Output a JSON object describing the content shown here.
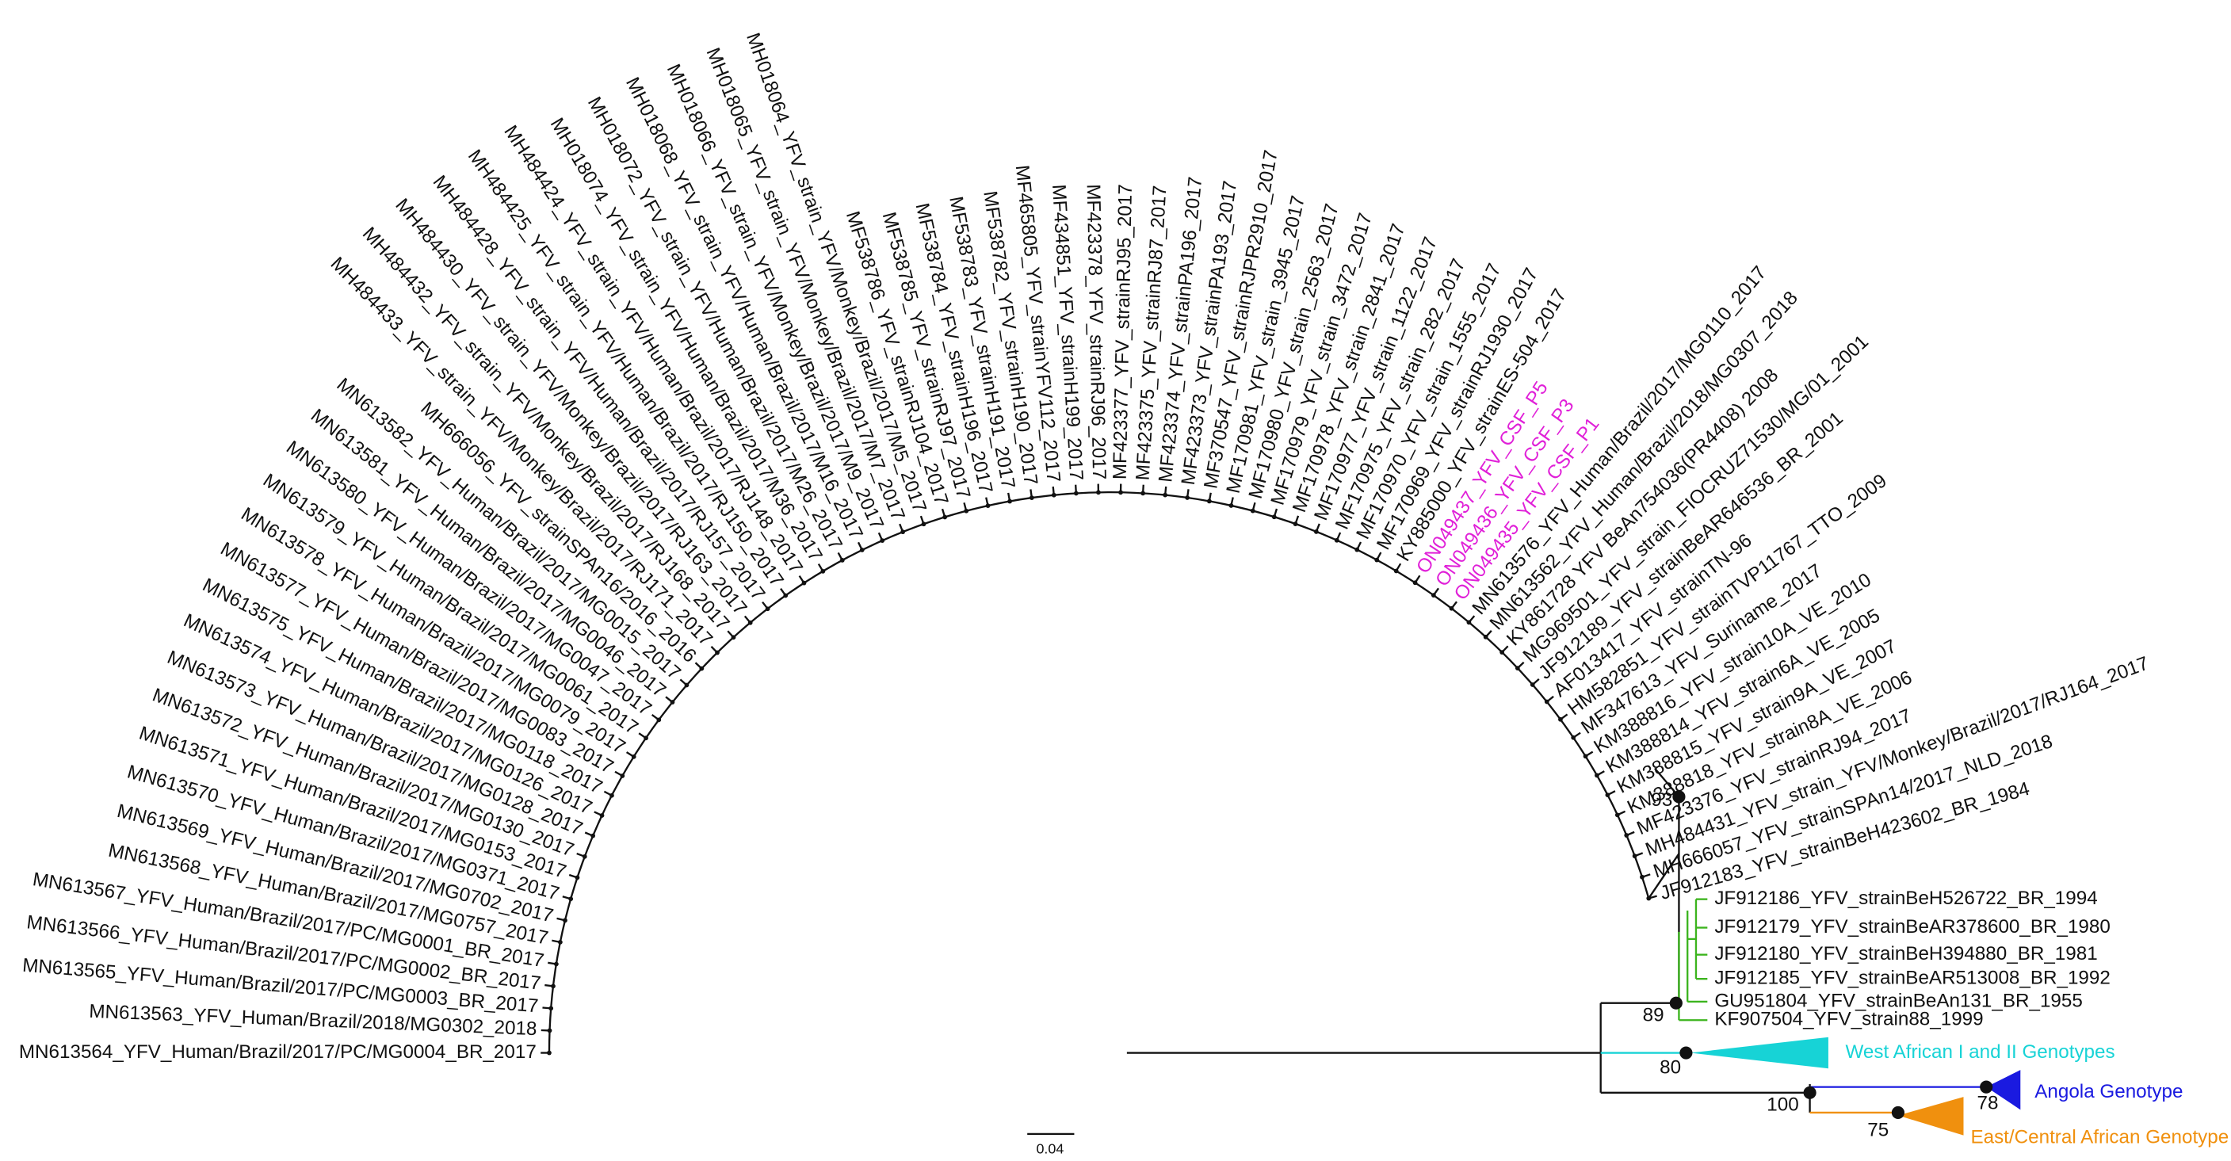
{
  "tree": {
    "leaves": [
      "MN613564_YFV_Human/Brazil/2017/PC/MG0004_BR_2017",
      "MN613563_YFV_Human/Brazil/2018/MG0302_2018",
      "MN613565_YFV_Human/Brazil/2017/PC/MG0003_BR_2017",
      "MN613566_YFV_Human/Brazil/2017/PC/MG0002_BR_2017",
      "MN613567_YFV_Human/Brazil/2017/PC/MG0001_BR_2017",
      "MN613568_YFV_Human/Brazil/2017/MG0757_2017",
      "MN613569_YFV_Human/Brazil/2017/MG0702_2017",
      "MN613570_YFV_Human/Brazil/2017/MG0371_2017",
      "MN613571_YFV_Human/Brazil/2017/MG0153_2017",
      "MN613572_YFV_Human/Brazil/2017/MG0130_2017",
      "MN613573_YFV_Human/Brazil/2017/MG0128_2017",
      "MN613574_YFV_Human/Brazil/2017/MG0126_2017",
      "MN613575_YFV_Human/Brazil/2017/MG0118_2017",
      "MN613577_YFV_Human/Brazil/2017/MG0083_2017",
      "MN613578_YFV_Human/Brazil/2017/MG0079_2017",
      "MN613579_YFV_Human/Brazil/2017/MG0061_2017",
      "MN613580_YFV_Human/Brazil/2017/MG0047_2017",
      "MN613581_YFV_Human/Brazil/2017/MG0046_2017",
      "MN613582_YFV_Human/Brazil/2017/MG0015_2017",
      "MH666056_YFV_strainSPAn16/2016_2016",
      "MH484433_YFV_strain_YFV/Monkey/Brazil/2017/RJ171_2017",
      "MH484432_YFV_strain_YFV/Monkey/Brazil/2017/RJ168_2017",
      "MH484430_YFV_strain_YFV/Monkey/Brazil/2017/RJ163_2017",
      "MH484428_YFV_strain_YFV/Human/Brazil/2017/RJ157_2017",
      "MH484425_YFV_strain_YFV/Human/Brazil/2017/RJ150_2017",
      "MH484424_YFV_strain_YFV/Human/Brazil/2017/RJ148_2017",
      "MH018074_YFV_strain_YFV/Human/Brazil/2017/M36_2017",
      "MH018072_YFV_strain_YFV/Human/Brazil/2017/M26_2017",
      "MH018068_YFV_strain_YFV/Human/Brazil/2017/M16_2017",
      "MH018066_YFV_strain_YFV/Monkey/Brazil/2017/M9_2017",
      "MH018065_YFV_strain_YFV/Monkey/Brazil/2017/M7_2017",
      "MH018064_YFV_strain_YFV/Monkey/Brazil/2017/M5_2017",
      "MF538786_YFV_strainRJ104_2017",
      "MF538785_YFV_strainRJ97_2017",
      "MF538784_YFV_strainH196_2017",
      "MF538783_YFV_strainH191_2017",
      "MF538782_YFV_strainH190_2017",
      "MF465805_YFV_strainYFV112_2017",
      "MF434851_YFV_strainH199_2017",
      "MF423378_YFV_strainRJ96_2017",
      "MF423377_YFV_strainRJ95_2017",
      "MF423375_YFV_strainRJ87_2017",
      "MF423374_YFV_strainPA196_2017",
      "MF423373_YFV_strainPA193_2017",
      "MF370547_YFV_strainRJPR2910_2017",
      "MF170981_YFV_strain_3945_2017",
      "MF170980_YFV_strain_2563_2017",
      "MF170979_YFV_strain_3472_2017",
      "MF170978_YFV_strain_2841_2017",
      "MF170977_YFV_strain_1122_2017",
      "MF170975_YFV_strain_282_2017",
      "MF170970_YFV_strain_1555_2017",
      "MF170969_YFV_strainRJ1930_2017",
      "KY885000_YFV_strainES-504_2017"
    ],
    "csf_samples": {
      "color": "#e020d8",
      "labels": [
        "ON049437_YFV_CSF_P5",
        "ON049436_YFV_CSF_P3",
        "ON049435_YFV_CSF_P1"
      ]
    },
    "other_leaves": [
      "MN613576_YFV_Human/Brazil/2017/MG0110_2017",
      "MN613562_YFV_Human/Brazil/2018/MG0307_2018",
      "KY861728 YFV BeAn754036(PR4408) 2008",
      "MG969501_YFV_strain_FIOCRUZ71530/MG/01_2001",
      "JF912189_YFV_strainBeAR646536_BR_2001",
      "AF013417_YFV_strainTN-96",
      "HM582851_YFV_strainTVP11767_TTO_2009",
      "MF347613_YFV_Suriname_2017",
      "KM388816_YFV_strain10A_VE_2010",
      "KM388814_YFV_strain6A_VE_2005",
      "KM388815_YFV_strain9A_VE_2007",
      "KM388818_YFV_strain8A_VE_2006",
      "MF423376_YFV_strainRJ94_2017",
      "MH484431_YFV_strain_YFV/Monkey/Brazil/2017/RJ164_2017",
      "MH666057_YFV_strainSPAn14/2017_NLD_2018",
      "JF912183_YFV_strainBeH423602_BR_1984"
    ],
    "green_clade": {
      "color": "#3cb41e",
      "labels": [
        "JF912186_YFV_strainBeH526722_BR_1994",
        "JF912179_YFV_strainBeAR378600_BR_1980",
        "JF912180_YFV_strainBeH394880_BR_1981",
        "JF912185_YFV_strainBeAR513008_BR_1992",
        "GU951804_YFV_strainBeAn131_BR_1955",
        "KF907504_YFV_strain88_1999"
      ]
    },
    "clades": [
      {
        "label": "West African I and II Genotypes",
        "color": "#17d3d6"
      },
      {
        "label": "Angola Genotype",
        "color": "#1a1ae0"
      },
      {
        "label": "East/Central African Genotype",
        "color": "#f0900e"
      }
    ],
    "bootstrap": [
      93,
      89,
      80,
      100,
      78,
      75
    ],
    "scale_bar": "0.04"
  }
}
